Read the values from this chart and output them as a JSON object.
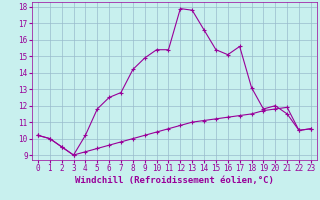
{
  "xlabel": "Windchill (Refroidissement éolien,°C)",
  "background_color": "#c8f0ee",
  "line_color": "#990099",
  "xlim": [
    -0.5,
    23.5
  ],
  "ylim": [
    8.7,
    18.3
  ],
  "yticks": [
    9,
    10,
    11,
    12,
    13,
    14,
    15,
    16,
    17,
    18
  ],
  "xticks": [
    0,
    1,
    2,
    3,
    4,
    5,
    6,
    7,
    8,
    9,
    10,
    11,
    12,
    13,
    14,
    15,
    16,
    17,
    18,
    19,
    20,
    21,
    22,
    23
  ],
  "series1_x": [
    0,
    1,
    2,
    3,
    4,
    5,
    6,
    7,
    8,
    9,
    10,
    11,
    12,
    13,
    14,
    15,
    16,
    17,
    18,
    19,
    20,
    21,
    22,
    23
  ],
  "series1_y": [
    10.2,
    10.0,
    9.5,
    9.0,
    10.2,
    11.8,
    12.5,
    12.8,
    14.2,
    14.9,
    15.4,
    15.4,
    17.9,
    17.8,
    16.6,
    15.4,
    15.1,
    15.6,
    13.1,
    11.8,
    12.0,
    11.5,
    10.5,
    10.6
  ],
  "series2_x": [
    0,
    1,
    2,
    3,
    4,
    5,
    6,
    7,
    8,
    9,
    10,
    11,
    12,
    13,
    14,
    15,
    16,
    17,
    18,
    19,
    20,
    21,
    22,
    23
  ],
  "series2_y": [
    10.2,
    10.0,
    9.5,
    9.0,
    9.2,
    9.4,
    9.6,
    9.8,
    10.0,
    10.2,
    10.4,
    10.6,
    10.8,
    11.0,
    11.1,
    11.2,
    11.3,
    11.4,
    11.5,
    11.7,
    11.8,
    11.9,
    10.5,
    10.6
  ],
  "grid_color": "#99bbcc",
  "tick_fontsize": 5.5,
  "label_fontsize": 6.5
}
